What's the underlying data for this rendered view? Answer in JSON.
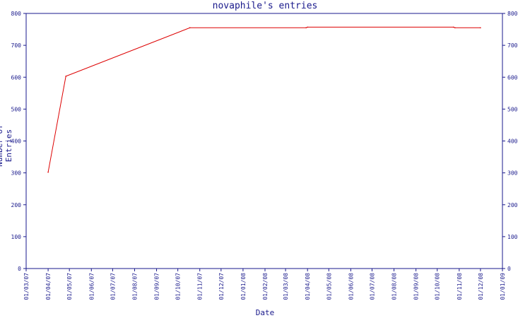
{
  "chart_data": {
    "type": "line",
    "title": "novaphile's entries",
    "xlabel": "Date",
    "ylabel": "Number of Entries",
    "ylim": [
      0,
      800
    ],
    "y_ticks": [
      "0",
      "100",
      "200",
      "300",
      "400",
      "500",
      "600",
      "700",
      "800"
    ],
    "x_tick_labels": [
      "01/03/07",
      "01/04/07",
      "01/05/07",
      "01/06/07",
      "01/07/07",
      "01/08/07",
      "01/09/07",
      "01/10/07",
      "01/11/07",
      "01/12/07",
      "01/01/08",
      "01/02/08",
      "01/03/08",
      "01/04/08",
      "01/05/08",
      "01/06/08",
      "01/07/08",
      "01/08/08",
      "01/09/08",
      "01/10/08",
      "01/11/08",
      "01/12/08",
      "01/01/09"
    ],
    "xlim": [
      "2007-03-01",
      "2009-01-01"
    ],
    "grid": false,
    "series": [
      {
        "color": "#dd0000",
        "points": [
          {
            "x": "2007-04-01",
            "y": 302
          },
          {
            "x": "2007-04-26",
            "y": 603
          },
          {
            "x": "2007-10-18",
            "y": 755
          },
          {
            "x": "2008-03-30",
            "y": 755
          },
          {
            "x": "2008-04-01",
            "y": 757
          },
          {
            "x": "2008-10-24",
            "y": 757
          },
          {
            "x": "2008-10-26",
            "y": 755
          },
          {
            "x": "2008-12-01",
            "y": 755
          }
        ]
      }
    ],
    "axis_color": "#1a1a8c"
  }
}
